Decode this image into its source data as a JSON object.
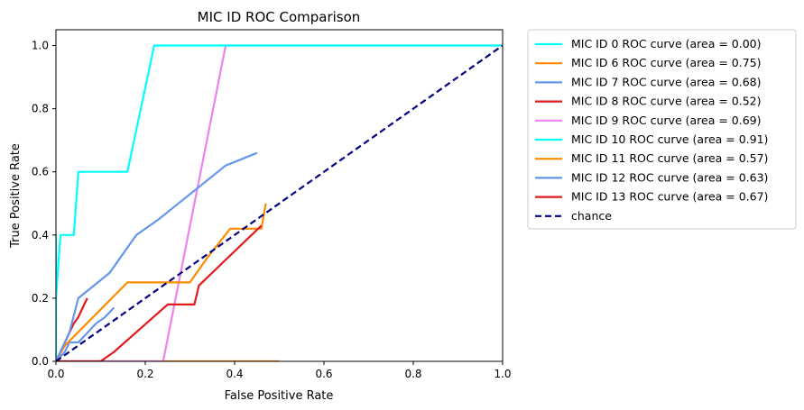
{
  "chart_data": {
    "type": "line",
    "title": "MIC ID ROC Comparison",
    "xlabel": "False Positive Rate",
    "ylabel": "True Positive Rate",
    "xlim": [
      0,
      1.0
    ],
    "ylim": [
      0,
      1.05
    ],
    "xticks": [
      0.0,
      0.2,
      0.4,
      0.6,
      0.8,
      1.0
    ],
    "xtick_labels": [
      "0.0",
      "0.2",
      "0.4",
      "0.6",
      "0.8",
      "1.0"
    ],
    "yticks": [
      0.0,
      0.2,
      0.4,
      0.6,
      0.8,
      1.0
    ],
    "ytick_labels": [
      "0.0",
      "0.2",
      "0.4",
      "0.6",
      "0.8",
      "1.0"
    ],
    "grid": false,
    "legend_position": "outside-right",
    "series": [
      {
        "name": "MIC ID 0 ROC curve (area = 0.00)",
        "color": "#00ffff",
        "style": "solid",
        "x": [
          0,
          0,
          0,
          0
        ],
        "y": [
          0,
          0.2,
          0.4,
          0
        ]
      },
      {
        "name": "MIC ID 6 ROC curve (area = 0.75)",
        "color": "#ff8c00",
        "style": "solid",
        "x": [
          0,
          0.01,
          0.01,
          0.02,
          0.02,
          0.03,
          0.03,
          0.5
        ],
        "y": [
          0,
          0,
          0,
          0,
          0,
          0,
          0,
          0
        ]
      },
      {
        "name": "MIC ID 7 ROC curve (area = 0.68)",
        "color": "#6495ed",
        "style": "solid",
        "x": [
          0,
          0.02,
          0.03,
          0.05,
          0.07,
          0.09,
          0.11,
          0.13
        ],
        "y": [
          0,
          0.03,
          0.06,
          0.06,
          0.09,
          0.12,
          0.14,
          0.17
        ]
      },
      {
        "name": "MIC ID 8 ROC curve (area = 0.52)",
        "color": "#e31a1c",
        "style": "solid",
        "x": [
          0,
          0.01,
          0.02,
          0.03,
          0.04,
          0.05,
          0.06,
          0.07
        ],
        "y": [
          0,
          0.03,
          0.06,
          0.09,
          0.12,
          0.14,
          0.17,
          0.2
        ]
      },
      {
        "name": "MIC ID 9 ROC curve (area = 0.69)",
        "color": "#ee82ee",
        "style": "solid",
        "x": [
          0,
          0.24,
          0.38,
          1.0
        ],
        "y": [
          0,
          0.0,
          1.0,
          1.0
        ]
      },
      {
        "name": "MIC ID 10 ROC curve (area = 0.91)",
        "color": "#00ffff",
        "style": "solid",
        "x": [
          0,
          0.0,
          0.01,
          0.04,
          0.05,
          0.16,
          0.22,
          1.0
        ],
        "y": [
          0,
          0.2,
          0.4,
          0.4,
          0.6,
          0.6,
          1.0,
          1.0
        ]
      },
      {
        "name": "MIC ID 11 ROC curve (area = 0.57)",
        "color": "#ff8c00",
        "style": "solid",
        "x": [
          0,
          0.02,
          0.16,
          0.3,
          0.34,
          0.39,
          0.46,
          0.47
        ],
        "y": [
          0,
          0.05,
          0.25,
          0.25,
          0.33,
          0.42,
          0.42,
          0.5
        ]
      },
      {
        "name": "MIC ID 12 ROC curve (area = 0.63)",
        "color": "#6495ed",
        "style": "solid",
        "x": [
          0,
          0.03,
          0.05,
          0.12,
          0.18,
          0.23,
          0.38,
          0.45
        ],
        "y": [
          0,
          0.09,
          0.2,
          0.28,
          0.4,
          0.45,
          0.62,
          0.66
        ]
      },
      {
        "name": "MIC ID 13 ROC curve (area = 0.67)",
        "color": "#e31a1c",
        "style": "solid",
        "x": [
          0,
          0.1,
          0.13,
          0.25,
          0.26,
          0.31,
          0.32,
          0.46
        ],
        "y": [
          0,
          0.0,
          0.03,
          0.18,
          0.18,
          0.18,
          0.24,
          0.43
        ]
      },
      {
        "name": "chance",
        "color": "#000080",
        "style": "dashed",
        "x": [
          0,
          1
        ],
        "y": [
          0,
          1
        ]
      }
    ]
  }
}
